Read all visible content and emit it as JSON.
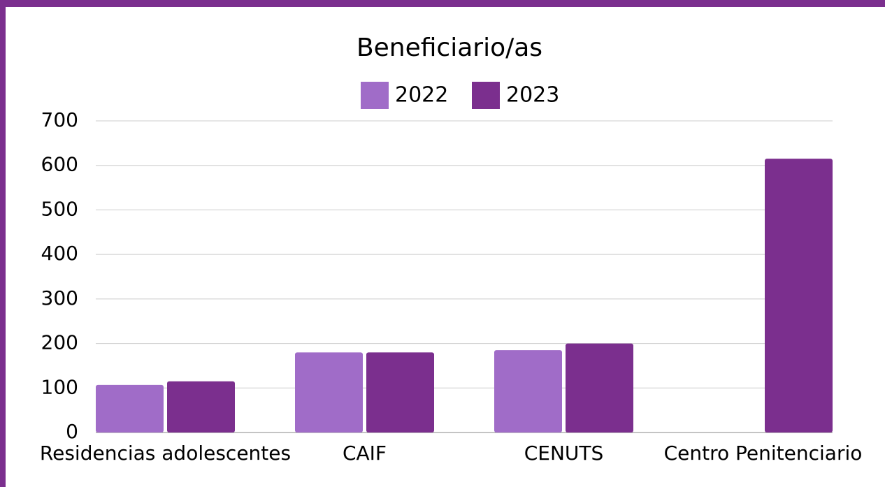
{
  "chart_data": {
    "type": "bar",
    "title": "Beneficiario/as",
    "categories": [
      "Residencias adolescentes",
      "CAIF",
      "CENUTS",
      "Centro Penitenciario"
    ],
    "series": [
      {
        "name": "2022",
        "color": "#a06cc8",
        "values": [
          107,
          180,
          185,
          null
        ]
      },
      {
        "name": "2023",
        "color": "#7b2f8e",
        "values": [
          115,
          180,
          200,
          615
        ]
      }
    ],
    "ylim": [
      0,
      700
    ],
    "yticks": [
      0,
      100,
      200,
      300,
      400,
      500,
      600,
      700
    ],
    "grid": true,
    "legend": "top"
  }
}
